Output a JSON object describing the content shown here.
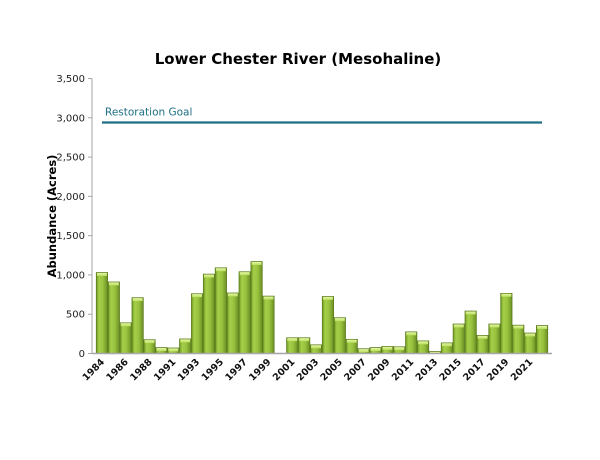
{
  "chart_data": {
    "type": "bar",
    "title": "Lower Chester River (Mesohaline)",
    "xlabel": "",
    "ylabel": "Abundance (Acres)",
    "ylim": [
      0,
      3500
    ],
    "yticks": [
      0,
      500,
      1000,
      1500,
      2000,
      2500,
      3000,
      3500
    ],
    "ytick_labels": [
      "0",
      "500",
      "1,000",
      "1,500",
      "2,000",
      "2,500",
      "3,000",
      "3,500"
    ],
    "grid": false,
    "legend": "none",
    "categories": [
      "1984",
      "1985",
      "1986",
      "1987",
      "1988",
      "1989",
      "1991",
      "1992",
      "1993",
      "1994",
      "1995",
      "1996",
      "1997",
      "1998",
      "1999",
      "2000",
      "2001",
      "2002",
      "2003",
      "2004",
      "2005",
      "2006",
      "2007",
      "2008",
      "2009",
      "2010",
      "2011",
      "2012",
      "2013",
      "2014",
      "2015",
      "2016",
      "2017",
      "2018",
      "2019",
      "2020",
      "2021",
      "2022"
    ],
    "xtick_labels_shown": [
      "1984",
      "1986",
      "1988",
      "1991",
      "1993",
      "1995",
      "1997",
      "1999",
      "2001",
      "2003",
      "2005",
      "2007",
      "2009",
      "2011",
      "2013",
      "2015",
      "2017",
      "2019",
      "2021"
    ],
    "series": [
      {
        "name": "Abundance (Acres)",
        "color": "#8db83a",
        "values": [
          1030,
          910,
          390,
          710,
          175,
          75,
          70,
          185,
          760,
          1010,
          1090,
          770,
          1040,
          1170,
          730,
          null,
          200,
          200,
          110,
          725,
          455,
          180,
          60,
          75,
          90,
          85,
          275,
          160,
          25,
          135,
          375,
          540,
          230,
          375,
          765,
          360,
          260,
          355
        ]
      }
    ],
    "annotations": [
      {
        "type": "hline",
        "label": "Restoration Goal",
        "value": 2940,
        "color": "#1f6f86"
      }
    ]
  }
}
